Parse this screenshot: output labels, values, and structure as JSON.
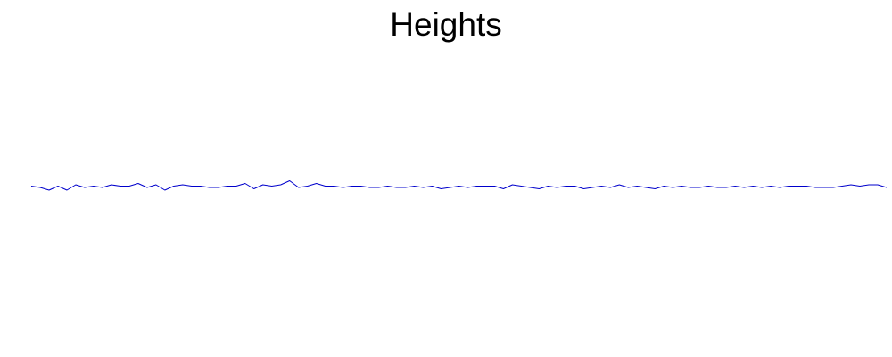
{
  "chart_data": {
    "type": "line",
    "title": "Heights",
    "xlabel": "",
    "ylabel": "",
    "axes_visible": false,
    "grid": false,
    "legend": "none",
    "line_color": "#0000cc",
    "ylim": [
      -1,
      1
    ],
    "x": [
      0,
      10,
      20,
      30,
      40,
      50,
      60,
      70,
      80,
      90,
      100,
      110,
      120,
      130,
      140,
      150,
      160,
      170,
      180,
      190,
      200,
      210,
      220,
      230,
      240,
      250,
      260,
      270,
      280,
      290,
      300,
      310,
      320,
      330,
      340,
      350,
      360,
      370,
      380,
      390,
      400,
      410,
      420,
      430,
      440,
      450,
      460,
      470,
      480,
      490,
      500,
      510,
      520,
      530,
      540,
      550,
      560,
      570,
      580,
      590,
      600,
      610,
      620,
      630,
      640,
      650,
      660,
      670,
      680,
      690,
      700,
      710,
      720,
      730,
      740,
      750,
      760,
      770,
      780,
      790,
      800,
      810,
      820,
      830,
      840,
      850,
      860,
      870,
      880,
      890,
      900,
      910,
      920,
      930,
      940,
      950,
      960
    ],
    "series": [
      {
        "values": [
          0.01,
          0.0,
          -0.02,
          0.01,
          -0.02,
          0.02,
          0.0,
          0.01,
          0.0,
          0.02,
          0.01,
          0.01,
          0.03,
          0.0,
          0.02,
          -0.02,
          0.01,
          0.02,
          0.01,
          0.01,
          0.0,
          0.0,
          0.01,
          0.01,
          0.03,
          -0.01,
          0.02,
          0.01,
          0.02,
          0.05,
          0.0,
          0.01,
          0.03,
          0.01,
          0.01,
          0.0,
          0.01,
          0.01,
          0.0,
          0.0,
          0.01,
          0.0,
          0.0,
          0.01,
          0.0,
          0.01,
          -0.01,
          0.0,
          0.01,
          0.0,
          0.01,
          0.01,
          0.01,
          -0.01,
          0.02,
          0.01,
          0.0,
          -0.01,
          0.01,
          0.0,
          0.01,
          0.01,
          -0.01,
          0.0,
          0.01,
          0.0,
          0.02,
          0.0,
          0.01,
          0.0,
          -0.01,
          0.01,
          0.0,
          0.01,
          0.0,
          0.0,
          0.01,
          0.0,
          0.0,
          0.01,
          0.0,
          0.01,
          0.0,
          0.01,
          0.0,
          0.01,
          0.01,
          0.01,
          0.0,
          0.0,
          0.0,
          0.01,
          0.02,
          0.01,
          0.02,
          0.02,
          0.0
        ]
      }
    ]
  }
}
